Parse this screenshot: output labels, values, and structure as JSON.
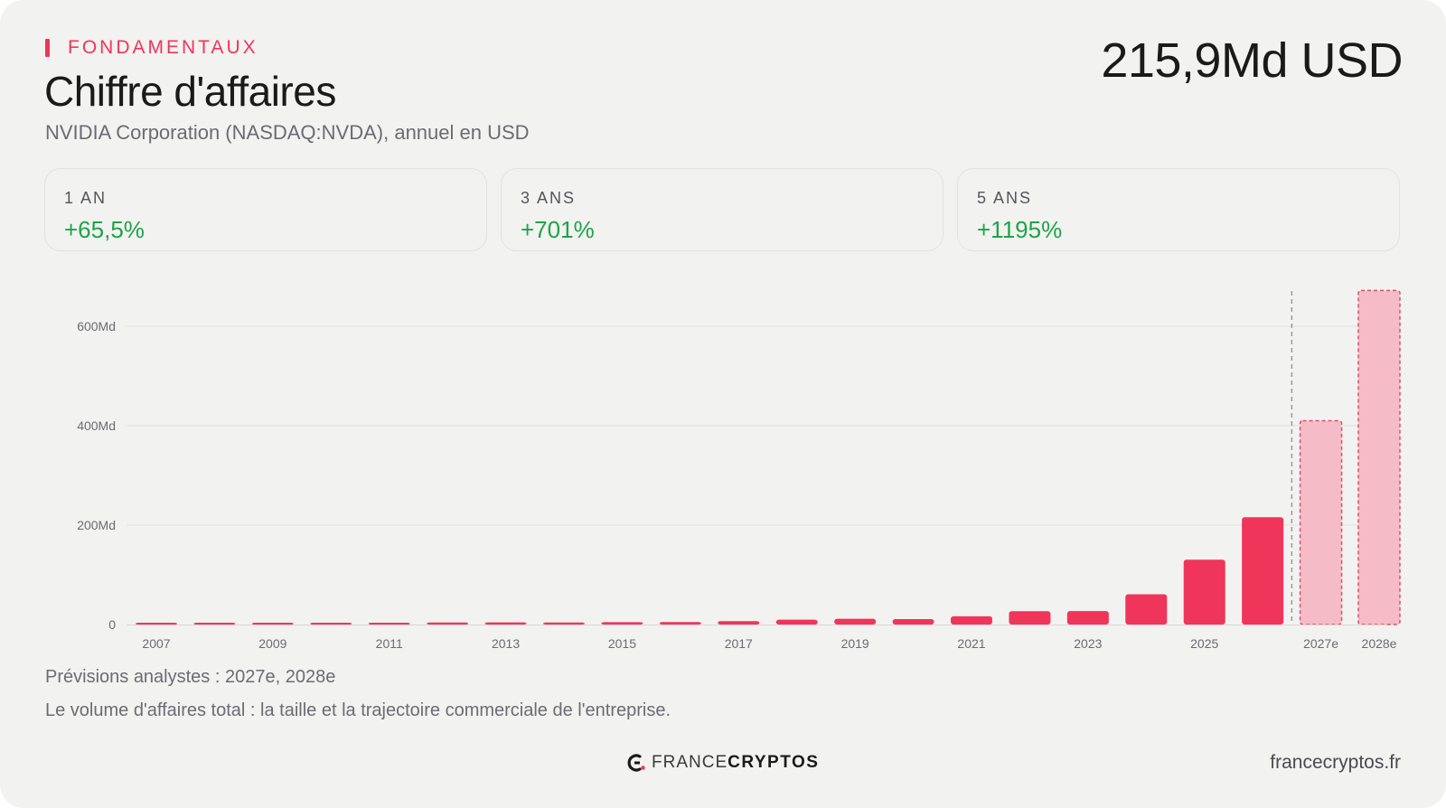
{
  "header": {
    "section": "FONDAMENTAUX",
    "title": "Chiffre d'affaires",
    "subtitle": "NVIDIA Corporation (NASDAQ:NVDA), annuel en USD",
    "headline_value": "215,9Md USD"
  },
  "stats": [
    {
      "label": "1 AN",
      "value": "+65,5%"
    },
    {
      "label": "3 ANS",
      "value": "+701%"
    },
    {
      "label": "5 ANS",
      "value": "+1195%"
    }
  ],
  "colors": {
    "accent": "#f0355a",
    "positive": "#1fa34a",
    "estimate_fill": "#f5bcc8",
    "estimate_border": "#d9506e"
  },
  "chart_data": {
    "type": "bar",
    "categories": [
      "2007",
      "2008",
      "2009",
      "2010",
      "2011",
      "2012",
      "2013",
      "2014",
      "2015",
      "2016",
      "2017",
      "2018",
      "2019",
      "2020",
      "2021",
      "2022",
      "2023",
      "2024",
      "2025",
      "2026",
      "2027e",
      "2028e"
    ],
    "tick_labels": [
      "2007",
      "",
      "2009",
      "",
      "2011",
      "",
      "2013",
      "",
      "2015",
      "",
      "2017",
      "",
      "2019",
      "",
      "2021",
      "",
      "2023",
      "",
      "2025",
      "",
      "2027e",
      "2028e"
    ],
    "values": [
      3.1,
      3.4,
      3.4,
      3.3,
      3.5,
      4.0,
      4.3,
      4.1,
      4.7,
      5.0,
      6.9,
      9.7,
      11.7,
      10.9,
      16.7,
      26.9,
      27.0,
      60.9,
      130.5,
      215.9,
      410,
      672
    ],
    "estimate": [
      false,
      false,
      false,
      false,
      false,
      false,
      false,
      false,
      false,
      false,
      false,
      false,
      false,
      false,
      false,
      false,
      false,
      false,
      false,
      false,
      true,
      true
    ],
    "y_ticks": [
      {
        "value": 0,
        "label": "0"
      },
      {
        "value": 200,
        "label": "200Md"
      },
      {
        "value": 400,
        "label": "400Md"
      },
      {
        "value": 600,
        "label": "600Md"
      }
    ],
    "ylim": [
      0,
      600
    ],
    "grid": true,
    "forecast_divider": true
  },
  "footer": {
    "note1": "Prévisions analystes : 2027e, 2028e",
    "note2": "Le volume d'affaires total : la taille et la trajectoire commerciale de l'entreprise.",
    "logo_light": "FRANCE",
    "logo_bold": "CRYPTOS",
    "site": "francecryptos.fr"
  }
}
